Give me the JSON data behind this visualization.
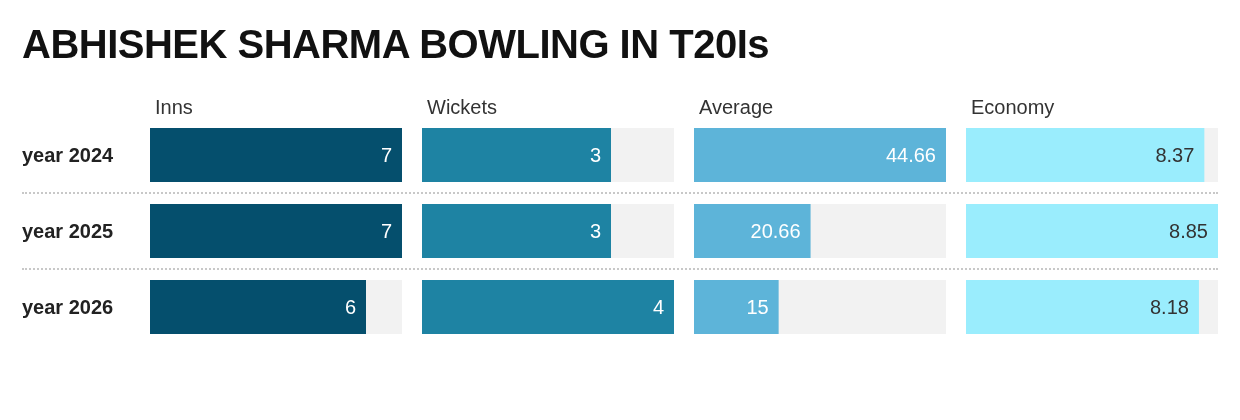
{
  "chart_data": [
    {
      "type": "bar",
      "orientation": "horizontal",
      "title": "ABHISHEK SHARMA BOWLING IN T20Is",
      "subtitle": "Inns",
      "categories": [
        "year 2024",
        "year 2025",
        "year 2026"
      ],
      "values": [
        7,
        7,
        6
      ],
      "color": "#054f6d",
      "data_labels": true,
      "tick_labels": "y"
    },
    {
      "type": "bar",
      "orientation": "horizontal",
      "subtitle": "Wickets",
      "categories": [
        null,
        null,
        null
      ],
      "values": [
        3,
        3,
        4
      ],
      "color": "#1e83a3",
      "data_labels": true,
      "tick_labels": false
    },
    {
      "type": "bar",
      "orientation": "horizontal",
      "subtitle": "Average",
      "categories": [
        null,
        null,
        null
      ],
      "values": [
        44.66,
        20.66,
        15
      ],
      "color": "#5db4d9",
      "data_labels": true,
      "tick_labels": false
    },
    {
      "type": "bar",
      "orientation": "horizontal",
      "subtitle": "Economy",
      "categories": [
        null,
        null,
        null
      ],
      "values": [
        8.37,
        8.85,
        8.18
      ],
      "color": "#9aedfd",
      "data_labels": true,
      "tick_labels": false
    }
  ]
}
